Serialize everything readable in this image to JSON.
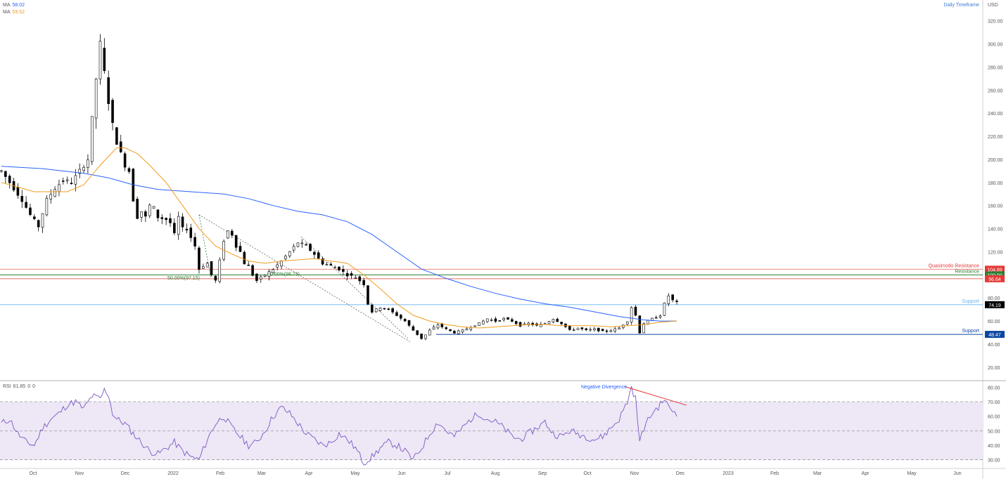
{
  "header": {
    "ma_label_1": "MA",
    "ma_value_1": "58.02",
    "ma_label_2": "MA",
    "ma_value_2": "59.52",
    "timeframe": "Daily Timeframe",
    "currency": "USD"
  },
  "rsi_header": {
    "label": "RSI",
    "value": "61.85",
    "extra1": "0",
    "extra2": "0"
  },
  "colors": {
    "candle": "#000000",
    "ma_fast": "#f29b1c",
    "ma_slow": "#2962ff",
    "quasimodo": "#e53935",
    "resistance": "#2e7d32",
    "support_light": "#64b5f6",
    "support_dark": "#0d47a1",
    "rsi_line": "#7e57c2",
    "rsi_band": "#ede7f6"
  },
  "chart_data": [
    {
      "type": "candlestick",
      "x_ticks": [
        "Oct",
        "Nov",
        "Dec",
        "2022",
        "Feb",
        "Mar",
        "Apr",
        "May",
        "Jun",
        "Jul",
        "Aug",
        "Sep",
        "Oct",
        "Nov",
        "Dec",
        "2023",
        "Feb",
        "Mar",
        "Apr",
        "May",
        "Jun"
      ],
      "y_ticks": [
        "20.00",
        "40.00",
        "60.00",
        "80.00",
        "100.00",
        "120.00",
        "140.00",
        "160.00",
        "180.00",
        "200.00",
        "220.00",
        "240.00",
        "260.00",
        "280.00",
        "300.00",
        "320.00"
      ],
      "ylim": [
        9,
        338
      ],
      "approx_close_path": [
        [
          0,
          190
        ],
        [
          3,
          175
        ],
        [
          5,
          165
        ],
        [
          7,
          152
        ],
        [
          9,
          142
        ],
        [
          11,
          165
        ],
        [
          13,
          175
        ],
        [
          15,
          182
        ],
        [
          17,
          180
        ],
        [
          19,
          190
        ],
        [
          21,
          200
        ],
        [
          22,
          235
        ],
        [
          23,
          270
        ],
        [
          24,
          300
        ],
        [
          25,
          275
        ],
        [
          26,
          250
        ],
        [
          27,
          230
        ],
        [
          28,
          215
        ],
        [
          29,
          205
        ],
        [
          30,
          195
        ],
        [
          31,
          190
        ],
        [
          32,
          165
        ],
        [
          33,
          150
        ],
        [
          34,
          155
        ],
        [
          35,
          150
        ],
        [
          36,
          160
        ],
        [
          37,
          158
        ],
        [
          38,
          150
        ],
        [
          40,
          148
        ],
        [
          41,
          145
        ],
        [
          42,
          135
        ],
        [
          43,
          150
        ],
        [
          44,
          140
        ],
        [
          45,
          140
        ],
        [
          47,
          125
        ],
        [
          48,
          105
        ],
        [
          49,
          108
        ],
        [
          50,
          110
        ],
        [
          51,
          100
        ],
        [
          52,
          95
        ],
        [
          53,
          112
        ],
        [
          54,
          130
        ],
        [
          55,
          138
        ],
        [
          56,
          135
        ],
        [
          57,
          125
        ],
        [
          58,
          120
        ],
        [
          59,
          110
        ],
        [
          60,
          108
        ],
        [
          61,
          100
        ],
        [
          62,
          95
        ],
        [
          64,
          100
        ],
        [
          66,
          105
        ],
        [
          68,
          112
        ],
        [
          70,
          120
        ],
        [
          72,
          128
        ],
        [
          74,
          125
        ],
        [
          76,
          118
        ],
        [
          78,
          110
        ],
        [
          80,
          108
        ],
        [
          82,
          105
        ],
        [
          84,
          100
        ],
        [
          86,
          98
        ],
        [
          88,
          92
        ],
        [
          89,
          75
        ],
        [
          90,
          68
        ],
        [
          92,
          72
        ],
        [
          94,
          70
        ],
        [
          96,
          65
        ],
        [
          98,
          60
        ],
        [
          100,
          52
        ],
        [
          102,
          45
        ],
        [
          103,
          48
        ],
        [
          104,
          52
        ],
        [
          106,
          57
        ],
        [
          108,
          53
        ],
        [
          110,
          50
        ],
        [
          112,
          52
        ],
        [
          114,
          55
        ],
        [
          116,
          58
        ],
        [
          118,
          62
        ],
        [
          120,
          60
        ],
        [
          122,
          62
        ],
        [
          124,
          60
        ],
        [
          126,
          56
        ],
        [
          128,
          58
        ],
        [
          130,
          56
        ],
        [
          132,
          58
        ],
        [
          134,
          62
        ],
        [
          136,
          58
        ],
        [
          138,
          52
        ],
        [
          140,
          54
        ],
        [
          142,
          52
        ],
        [
          144,
          53
        ],
        [
          146,
          51
        ],
        [
          148,
          52
        ],
        [
          150,
          54
        ],
        [
          152,
          60
        ],
        [
          153,
          72
        ],
        [
          154,
          65
        ],
        [
          155,
          50
        ],
        [
          156,
          58
        ],
        [
          158,
          62
        ],
        [
          160,
          65
        ],
        [
          161,
          75
        ],
        [
          162,
          82
        ],
        [
          163,
          78
        ],
        [
          164,
          76
        ]
      ],
      "ma_fast_path": [
        [
          0,
          180
        ],
        [
          8,
          172
        ],
        [
          16,
          172
        ],
        [
          20,
          178
        ],
        [
          24,
          195
        ],
        [
          28,
          210
        ],
        [
          30,
          210
        ],
        [
          33,
          205
        ],
        [
          36,
          195
        ],
        [
          40,
          180
        ],
        [
          44,
          160
        ],
        [
          48,
          140
        ],
        [
          52,
          125
        ],
        [
          56,
          118
        ],
        [
          60,
          112
        ],
        [
          64,
          110
        ],
        [
          68,
          112
        ],
        [
          72,
          113
        ],
        [
          76,
          114
        ],
        [
          80,
          112
        ],
        [
          84,
          110
        ],
        [
          88,
          100
        ],
        [
          92,
          88
        ],
        [
          96,
          75
        ],
        [
          100,
          65
        ],
        [
          104,
          60
        ],
        [
          108,
          57
        ],
        [
          112,
          55
        ],
        [
          116,
          54
        ],
        [
          120,
          55
        ],
        [
          124,
          56
        ],
        [
          128,
          57
        ],
        [
          132,
          57
        ],
        [
          136,
          56
        ],
        [
          140,
          56
        ],
        [
          144,
          56
        ],
        [
          148,
          55
        ],
        [
          152,
          56
        ],
        [
          156,
          57
        ],
        [
          160,
          59
        ],
        [
          164,
          60
        ]
      ],
      "ma_slow_path": [
        [
          0,
          194
        ],
        [
          10,
          192
        ],
        [
          20,
          188
        ],
        [
          26,
          184
        ],
        [
          32,
          178
        ],
        [
          38,
          174
        ],
        [
          46,
          172
        ],
        [
          54,
          170
        ],
        [
          60,
          166
        ],
        [
          66,
          160
        ],
        [
          72,
          155
        ],
        [
          78,
          152
        ],
        [
          84,
          146
        ],
        [
          90,
          135
        ],
        [
          96,
          120
        ],
        [
          102,
          105
        ],
        [
          108,
          97
        ],
        [
          114,
          90
        ],
        [
          120,
          84
        ],
        [
          126,
          79
        ],
        [
          132,
          75
        ],
        [
          138,
          72
        ],
        [
          144,
          68
        ],
        [
          150,
          64
        ],
        [
          156,
          61
        ],
        [
          160,
          60
        ],
        [
          164,
          60
        ]
      ],
      "levels": [
        {
          "label": "Quasimodo Resistance",
          "value": "104.89",
          "y": 104.89
        },
        {
          "label": "Resistance",
          "value": "100.00",
          "y": 100.0
        },
        {
          "label": "",
          "value": "96.64",
          "y": 96.64
        },
        {
          "label": "Support",
          "value": "74.19",
          "y": 74.19
        },
        {
          "label": "Support",
          "value": "48.47",
          "y": 48.47
        }
      ],
      "fib_labels": [
        {
          "text": "50.00%(97.15)",
          "y": 97.15
        },
        {
          "text": "50.00%(98.73)",
          "y": 98.73
        }
      ]
    },
    {
      "type": "line",
      "name": "RSI",
      "y_ticks": [
        "30.00",
        "40.00",
        "50.00",
        "60.00",
        "70.00",
        "80.00"
      ],
      "ylim": [
        25,
        84
      ],
      "bands": [
        30,
        50,
        70
      ],
      "annotation": "Negative Divergence",
      "approx_path": [
        [
          0,
          55
        ],
        [
          2,
          58
        ],
        [
          4,
          48
        ],
        [
          6,
          42
        ],
        [
          8,
          40
        ],
        [
          10,
          52
        ],
        [
          12,
          58
        ],
        [
          14,
          62
        ],
        [
          16,
          68
        ],
        [
          18,
          70
        ],
        [
          20,
          65
        ],
        [
          22,
          74
        ],
        [
          24,
          72
        ],
        [
          25,
          78
        ],
        [
          26,
          75
        ],
        [
          27,
          62
        ],
        [
          28,
          58
        ],
        [
          30,
          55
        ],
        [
          32,
          48
        ],
        [
          34,
          42
        ],
        [
          36,
          36
        ],
        [
          38,
          34
        ],
        [
          40,
          38
        ],
        [
          42,
          42
        ],
        [
          44,
          36
        ],
        [
          46,
          32
        ],
        [
          48,
          30
        ],
        [
          50,
          44
        ],
        [
          52,
          55
        ],
        [
          54,
          60
        ],
        [
          56,
          52
        ],
        [
          58,
          46
        ],
        [
          60,
          40
        ],
        [
          62,
          42
        ],
        [
          64,
          50
        ],
        [
          66,
          60
        ],
        [
          68,
          66
        ],
        [
          70,
          62
        ],
        [
          72,
          55
        ],
        [
          74,
          48
        ],
        [
          76,
          44
        ],
        [
          78,
          40
        ],
        [
          80,
          42
        ],
        [
          82,
          48
        ],
        [
          84,
          44
        ],
        [
          86,
          38
        ],
        [
          88,
          28
        ],
        [
          90,
          32
        ],
        [
          92,
          38
        ],
        [
          94,
          42
        ],
        [
          96,
          40
        ],
        [
          98,
          36
        ],
        [
          100,
          30
        ],
        [
          102,
          38
        ],
        [
          104,
          48
        ],
        [
          106,
          56
        ],
        [
          108,
          50
        ],
        [
          110,
          46
        ],
        [
          112,
          52
        ],
        [
          114,
          58
        ],
        [
          116,
          62
        ],
        [
          118,
          58
        ],
        [
          120,
          56
        ],
        [
          122,
          52
        ],
        [
          124,
          46
        ],
        [
          126,
          44
        ],
        [
          128,
          48
        ],
        [
          130,
          52
        ],
        [
          132,
          56
        ],
        [
          134,
          48
        ],
        [
          136,
          46
        ],
        [
          138,
          50
        ],
        [
          140,
          48
        ],
        [
          142,
          46
        ],
        [
          144,
          44
        ],
        [
          146,
          46
        ],
        [
          148,
          52
        ],
        [
          150,
          58
        ],
        [
          152,
          70
        ],
        [
          153,
          80
        ],
        [
          154,
          72
        ],
        [
          155,
          42
        ],
        [
          156,
          52
        ],
        [
          158,
          62
        ],
        [
          160,
          68
        ],
        [
          161,
          72
        ],
        [
          162,
          66
        ],
        [
          163,
          64
        ],
        [
          164,
          62
        ]
      ],
      "divergence_line": [
        [
          153,
          80
        ],
        [
          165,
          70
        ]
      ]
    }
  ]
}
